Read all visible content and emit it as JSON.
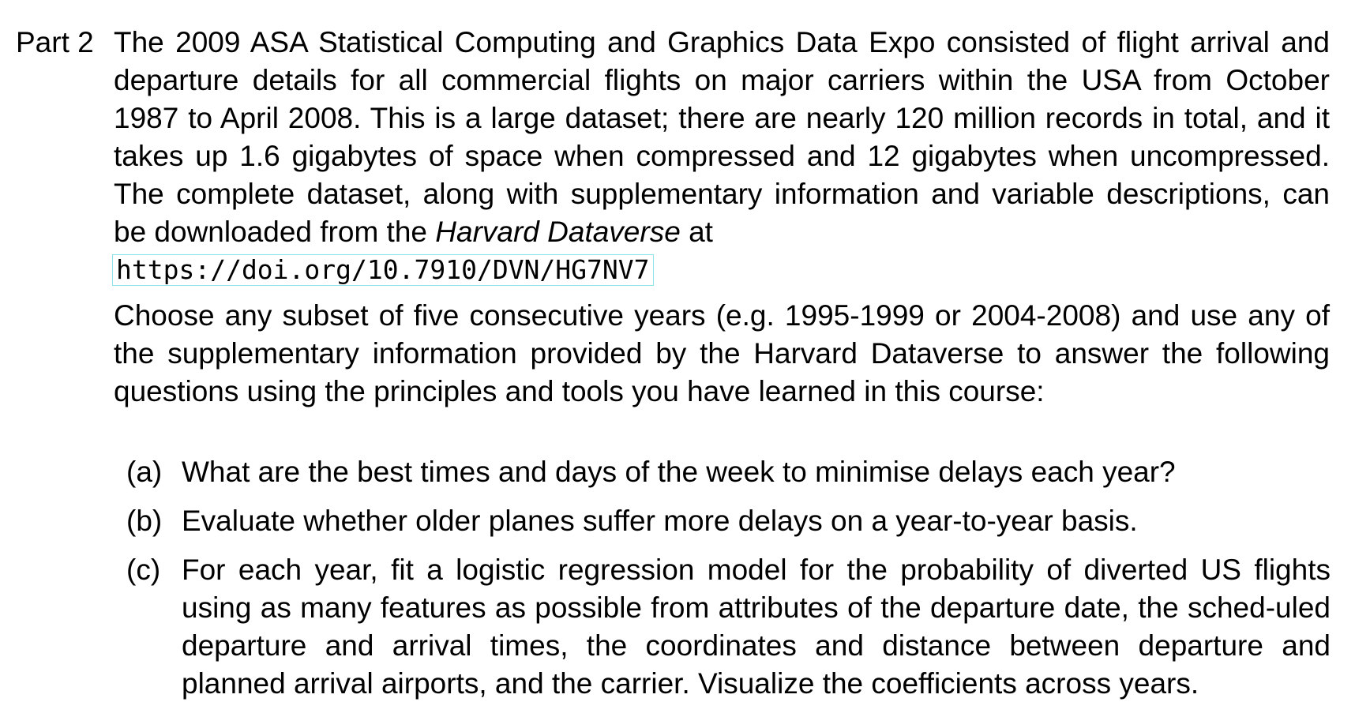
{
  "part_label": "Part 2",
  "intro": {
    "text_before_em": "The 2009 ASA Statistical Computing and Graphics Data Expo consisted of flight arrival and departure details for all commercial flights on major carriers within the USA from October 1987 to April 2008.  This is a large dataset; there are nearly 120 million records in total, and it takes up 1.6 gigabytes of space when compressed and 12 gigabytes when uncompressed. The complete dataset, along with supplementary information and variable descriptions, can be downloaded from the ",
    "em_text": "Harvard Dataverse",
    "text_after_em": " at",
    "url": "https://doi.org/10.7910/DVN/HG7NV7"
  },
  "instructions": "Choose any subset of five consecutive years (e.g. 1995-1999 or 2004-2008) and use any of the supplementary information provided by the Harvard Dataverse to answer the following questions using the principles and tools you have learned in this course:",
  "questions": [
    {
      "marker": "(a)",
      "text": "What are the best times and days of the week to minimise delays each year?"
    },
    {
      "marker": "(b)",
      "text": "Evaluate whether older planes suffer more delays on a year-to-year basis."
    },
    {
      "marker": "(c)",
      "text": "For each year, fit a logistic regression model for the probability of diverted US flights using as many features as possible from attributes of the departure date, the sched-uled departure and arrival times, the coordinates and distance between departure and planned arrival airports, and the carrier. Visualize the coefficients across years."
    }
  ]
}
